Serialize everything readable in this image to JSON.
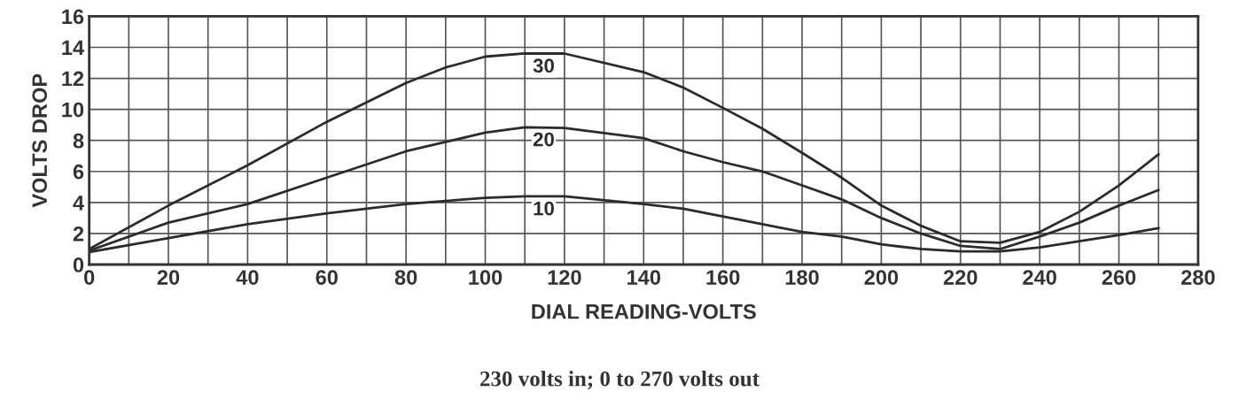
{
  "chart_data": {
    "type": "line",
    "xlabel": "DIAL READING-VOLTS",
    "ylabel": "VOLTS DROP",
    "annotations": [
      "230 volts in; 0 to 270 volts out"
    ],
    "x": [
      0,
      20,
      40,
      60,
      80,
      90,
      100,
      110,
      120,
      140,
      150,
      160,
      170,
      180,
      190,
      200,
      210,
      220,
      230,
      240,
      250,
      260,
      270
    ],
    "series": [
      {
        "name": "30",
        "color": "#2b2b2b",
        "values": [
          1.0,
          3.8,
          6.4,
          9.2,
          11.7,
          12.7,
          13.4,
          13.6,
          13.6,
          12.4,
          11.4,
          10.1,
          8.75,
          7.2,
          5.6,
          3.8,
          2.5,
          1.5,
          1.4,
          2.1,
          3.4,
          5.1,
          7.1
        ]
      },
      {
        "name": "20",
        "color": "#2b2b2b",
        "values": [
          0.9,
          2.7,
          3.9,
          5.6,
          7.3,
          7.9,
          8.5,
          8.85,
          8.8,
          8.15,
          7.3,
          6.6,
          6.0,
          5.1,
          4.2,
          3.0,
          2.0,
          1.2,
          1.0,
          1.8,
          2.7,
          3.8,
          4.8
        ]
      },
      {
        "name": "10",
        "color": "#2b2b2b",
        "values": [
          0.8,
          1.7,
          2.6,
          3.3,
          3.9,
          4.1,
          4.3,
          4.4,
          4.4,
          3.9,
          3.6,
          3.1,
          2.6,
          2.1,
          1.8,
          1.3,
          1.0,
          0.85,
          0.85,
          1.1,
          1.5,
          1.9,
          2.35
        ]
      }
    ],
    "xlim": [
      0,
      280
    ],
    "ylim": [
      0,
      16
    ],
    "xticks": [
      0,
      {
        "value": 10,
        "label": null
      },
      20,
      {
        "value": 30,
        "label": null
      },
      40,
      {
        "value": 50,
        "label": null
      },
      60,
      {
        "value": 70,
        "label": null
      },
      80,
      {
        "value": 90,
        "label": null
      },
      100,
      {
        "value": 110,
        "label": null
      },
      120,
      {
        "value": 130,
        "label": null
      },
      140,
      {
        "value": 150,
        "label": null
      },
      160,
      {
        "value": 170,
        "label": null
      },
      180,
      {
        "value": 190,
        "label": null
      },
      200,
      {
        "value": 210,
        "label": null
      },
      220,
      {
        "value": 230,
        "label": null
      },
      240,
      {
        "value": 250,
        "label": null
      },
      260,
      {
        "value": 270,
        "label": null
      },
      280
    ],
    "yticks": [
      0,
      2,
      4,
      6,
      8,
      10,
      12,
      14,
      16
    ],
    "grid": true,
    "marker": "none",
    "line_style": "solid",
    "legend": false
  }
}
